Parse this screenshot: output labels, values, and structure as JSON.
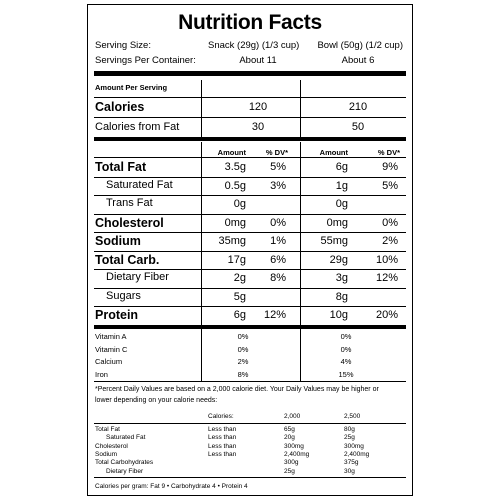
{
  "title": "Nutrition Facts",
  "serving": {
    "size_label": "Serving Size:",
    "size_snack": "Snack (29g) (1/3 cup)",
    "size_bowl": "Bowl (50g) (1/2 cup)",
    "per_container_label": "Servings Per Container:",
    "per_container_snack": "About 11",
    "per_container_bowl": "About 6"
  },
  "amount_per_serving": "Amount Per Serving",
  "calories": {
    "label": "Calories",
    "snack": "120",
    "bowl": "210"
  },
  "calories_fat": {
    "label": "Calories from Fat",
    "snack": "30",
    "bowl": "50"
  },
  "col_headers": {
    "amount": "Amount",
    "dv": "% DV*",
    "amount2": "Amount",
    "dv2": "% DV*"
  },
  "nutrients": [
    {
      "label": "Total Fat",
      "bold": true,
      "indent": false,
      "a1": "3.5g",
      "d1": "5%",
      "a2": "6g",
      "d2": "9%"
    },
    {
      "label": "Saturated Fat",
      "bold": false,
      "indent": true,
      "a1": "0.5g",
      "d1": "3%",
      "a2": "1g",
      "d2": "5%"
    },
    {
      "label": "Trans Fat",
      "bold": false,
      "indent": true,
      "a1": "0g",
      "d1": "",
      "a2": "0g",
      "d2": ""
    },
    {
      "label": "Cholesterol",
      "bold": true,
      "indent": false,
      "a1": "0mg",
      "d1": "0%",
      "a2": "0mg",
      "d2": "0%"
    },
    {
      "label": "Sodium",
      "bold": true,
      "indent": false,
      "a1": "35mg",
      "d1": "1%",
      "a2": "55mg",
      "d2": "2%"
    },
    {
      "label": "Total Carb.",
      "bold": true,
      "indent": false,
      "a1": "17g",
      "d1": "6%",
      "a2": "29g",
      "d2": "10%"
    },
    {
      "label": "Dietary Fiber",
      "bold": false,
      "indent": true,
      "a1": "2g",
      "d1": "8%",
      "a2": "3g",
      "d2": "12%"
    },
    {
      "label": "Sugars",
      "bold": false,
      "indent": true,
      "a1": "5g",
      "d1": "",
      "a2": "8g",
      "d2": ""
    },
    {
      "label": "Protein",
      "bold": true,
      "indent": false,
      "a1": "6g",
      "d1": "12%",
      "a2": "10g",
      "d2": "20%"
    }
  ],
  "vitamins": [
    {
      "label": "Vitamin A",
      "snack": "0%",
      "bowl": "0%"
    },
    {
      "label": "Vitamin C",
      "snack": "0%",
      "bowl": "0%"
    },
    {
      "label": "Calcium",
      "snack": "2%",
      "bowl": "4%"
    },
    {
      "label": "Iron",
      "snack": "8%",
      "bowl": "15%"
    }
  ],
  "footnote": {
    "line1": "*Percent Daily Values are based on a 2,000 calorie diet. Your Daily Values may be higher or",
    "line2": "lower depending on your calorie needs:"
  },
  "dv_table": {
    "header": {
      "label": "Calories:",
      "c1": "2,000",
      "c2": "2,500"
    },
    "rows": [
      {
        "label": "Total Fat",
        "indent": false,
        "qual": "Less than",
        "c1": "65g",
        "c2": "80g"
      },
      {
        "label": "Saturated Fat",
        "indent": true,
        "qual": "Less than",
        "c1": "20g",
        "c2": "25g"
      },
      {
        "label": "Cholesterol",
        "indent": false,
        "qual": "Less than",
        "c1": "300mg",
        "c2": "300mg"
      },
      {
        "label": "Sodium",
        "indent": false,
        "qual": "Less than",
        "c1": "2,400mg",
        "c2": "2,400mg"
      },
      {
        "label": "Total Carbohydrates",
        "indent": false,
        "qual": "",
        "c1": "300g",
        "c2": "375g"
      },
      {
        "label": "Dietary Fiber",
        "indent": true,
        "qual": "",
        "c1": "25g",
        "c2": "30g"
      }
    ]
  },
  "calories_per_gram": "Calories per gram:   Fat  9   •   Carbohydrate  4   •   Protein  4"
}
